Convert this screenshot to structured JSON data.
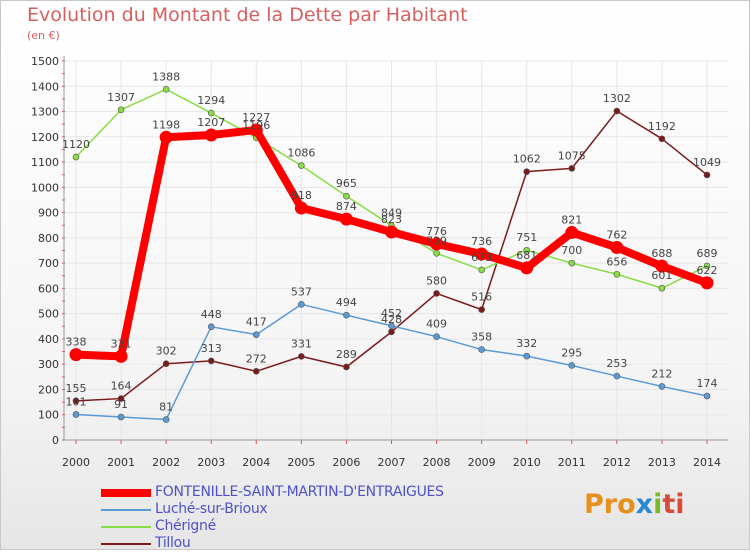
{
  "title": "Evolution du Montant de la Dette par Habitant",
  "subtitle": "(en €)",
  "logo": {
    "part1": "Pro",
    "part2": "x",
    "part3": "i",
    "part4": "ti"
  },
  "chart_data": {
    "type": "line",
    "title": "Evolution du Montant de la Dette par Habitant",
    "ylabel": "(en €)",
    "xlabel": "",
    "ylim": [
      0,
      1500
    ],
    "yticks": [
      "0",
      "100",
      "200",
      "300",
      "400",
      "500",
      "600",
      "700",
      "800",
      "900",
      "1000",
      "1100",
      "1200",
      "1300",
      "1400",
      "1500"
    ],
    "grid": true,
    "legend_position": "bottom-left",
    "x": [
      "2000",
      "2001",
      "2002",
      "2003",
      "2004",
      "2005",
      "2006",
      "2007",
      "2008",
      "2009",
      "2010",
      "2011",
      "2012",
      "2013",
      "2014"
    ],
    "series": [
      {
        "name": "FONTENILLE-SAINT-MARTIN-D'ENTRAIGUES",
        "color": "#ff0000",
        "width": 8,
        "values": [
          338,
          331,
          1198,
          1207,
          1227,
          918,
          874,
          823,
          776,
          736,
          681,
          821,
          762,
          688,
          622
        ],
        "labels": [
          "338",
          "331",
          "1198",
          "1207",
          "1227",
          "918",
          "874",
          "823",
          "776",
          "736",
          "681",
          "821",
          "762",
          "688",
          "622"
        ]
      },
      {
        "name": "Luché-sur-Brioux",
        "color": "#5b9bd5",
        "width": 1.5,
        "values": [
          101,
          91,
          81,
          448,
          417,
          537,
          494,
          452,
          409,
          358,
          332,
          295,
          253,
          212,
          174
        ],
        "labels": [
          "101",
          "91",
          "81",
          "448",
          "417",
          "537",
          "494",
          "452",
          "409",
          "358",
          "332",
          "295",
          "253",
          "212",
          "174"
        ]
      },
      {
        "name": "Chérigné",
        "color": "#88dd44",
        "width": 1.5,
        "values": [
          1120,
          1307,
          1388,
          1294,
          1196,
          1086,
          965,
          849,
          739,
          673,
          751,
          700,
          656,
          601,
          689
        ],
        "labels": [
          "1120",
          "1307",
          "1388",
          "1294",
          "1196",
          "1086",
          "965",
          "849",
          "739",
          "673",
          "751",
          "700",
          "656",
          "601",
          "689"
        ]
      },
      {
        "name": "Tillou",
        "color": "#7b1a1a",
        "width": 1.5,
        "values": [
          155,
          164,
          302,
          313,
          272,
          331,
          289,
          428,
          580,
          516,
          1062,
          1075,
          1302,
          1192,
          1049
        ],
        "labels": [
          "155",
          "164",
          "302",
          "313",
          "272",
          "331",
          "289",
          "428",
          "580",
          "516",
          "1062",
          "1075",
          "1302",
          "1192",
          "1049"
        ]
      }
    ]
  }
}
